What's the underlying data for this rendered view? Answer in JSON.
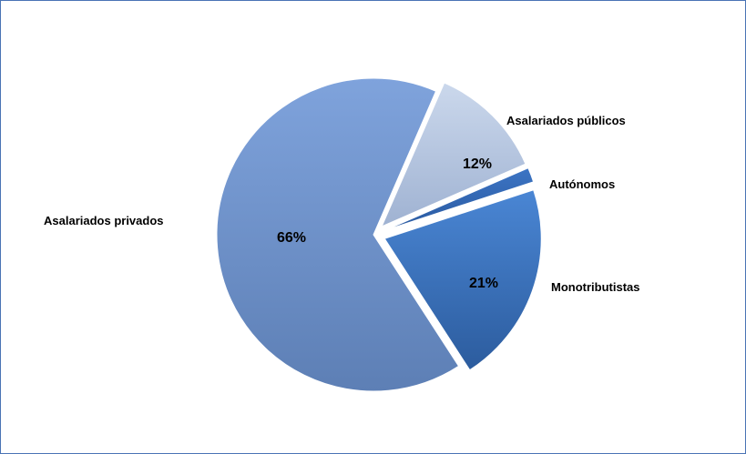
{
  "chart_data": {
    "type": "pie",
    "categories": [
      "Asalariados privados",
      "Asalariados públicos",
      "Autónomos",
      "Monotributistas"
    ],
    "values": [
      66,
      12,
      1.5,
      21
    ],
    "data_labels": [
      "66%",
      "12%",
      "",
      "21%"
    ],
    "legend": "none",
    "exploded": true
  },
  "colors": {
    "asalariados_privados": "#6f93cc",
    "asalariados_publicos": "#b6c7e2",
    "autonomos": "#2f64b0",
    "monotributistas": "#3f79c6",
    "frame_border": "#4a74b5"
  }
}
